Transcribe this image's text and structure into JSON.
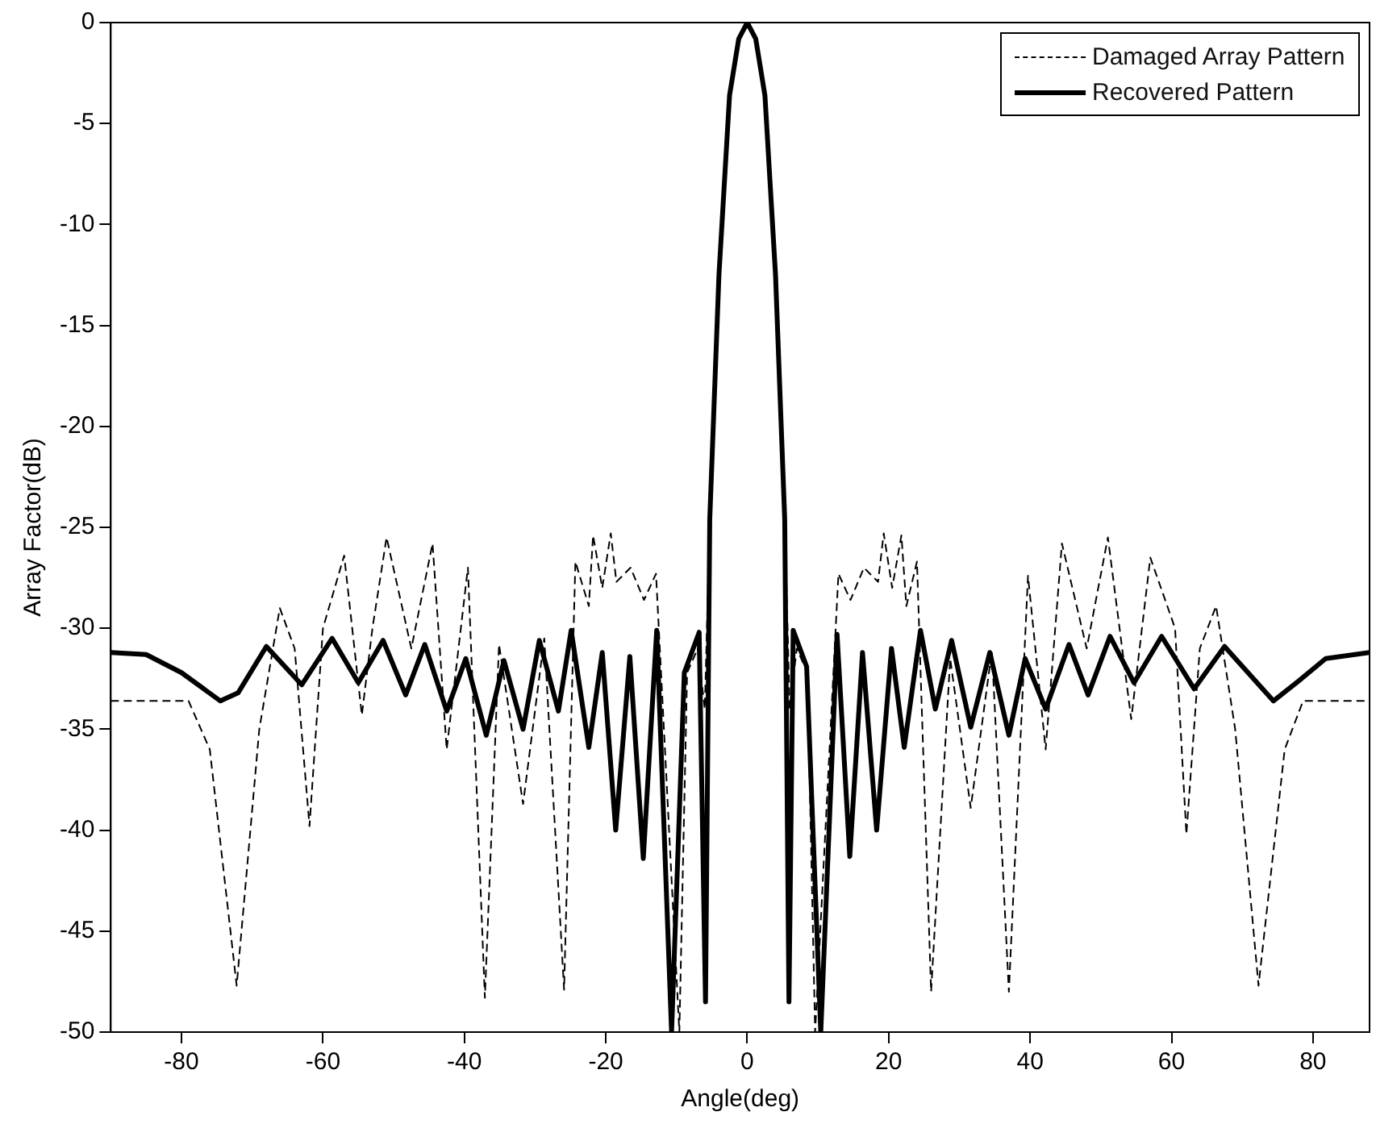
{
  "chart_data": {
    "type": "line",
    "xlabel": "Angle(deg)",
    "ylabel": "Array Factor(dB)",
    "xlim": [
      -90,
      88
    ],
    "ylim": [
      -50,
      0
    ],
    "xticks": [
      -80,
      -60,
      -40,
      -20,
      0,
      20,
      40,
      60,
      80
    ],
    "yticks": [
      0,
      -5,
      -10,
      -15,
      -20,
      -25,
      -30,
      -35,
      -40,
      -45,
      -50
    ],
    "legend": "top right",
    "marker": "none",
    "series": [
      {
        "name": "Damaged Array Pattern",
        "color": "#000000",
        "line_style": "dashed",
        "x": [
          -90,
          -79,
          -76,
          -72.2,
          -69,
          -66.1,
          -64,
          -61.9,
          -60,
          -57,
          -54.5,
          -53,
          -51,
          -47.5,
          -44.5,
          -42.5,
          -39.5,
          -37.1,
          -35.1,
          -31.7,
          -28.7,
          -25.9,
          -24.3,
          -22.4,
          -21.8,
          -20.5,
          -19.3,
          -18.5,
          -16.5,
          -14.6,
          -12.9,
          -9.6,
          -8.5,
          -7,
          -6,
          -5.3,
          -4,
          -2.5,
          -1.2,
          0,
          1.2,
          2.5,
          4,
          5.3,
          6,
          7,
          8.5,
          9.6,
          12.9,
          14.6,
          16.5,
          18.5,
          19.3,
          20.5,
          21.8,
          22.5,
          24,
          26,
          28.7,
          31.6,
          34.6,
          37,
          39.7,
          42.2,
          44.5,
          48,
          51,
          54.3,
          57,
          60.5,
          62.1,
          64,
          66.3,
          69,
          72.3,
          76,
          78.6,
          88
        ],
        "values": [
          -33.6,
          -33.6,
          -36,
          -47.7,
          -35,
          -29,
          -31,
          -39.8,
          -30,
          -26.4,
          -34.3,
          -30,
          -25.5,
          -31,
          -25.8,
          -36,
          -27,
          -48.3,
          -30.8,
          -38.7,
          -30.5,
          -47.9,
          -26.7,
          -28.9,
          -25.4,
          -28,
          -25.3,
          -27.7,
          -27,
          -28.6,
          -27.3,
          -50,
          -32.2,
          -31,
          -34,
          -24.6,
          -12.5,
          -3.6,
          -0.8,
          0,
          -0.8,
          -3.6,
          -12.5,
          -24.6,
          -34,
          -31,
          -32.2,
          -50,
          -27.3,
          -28.6,
          -27,
          -27.7,
          -25.3,
          -28,
          -25.4,
          -28.9,
          -26.7,
          -48,
          -31.5,
          -38.9,
          -31.1,
          -48,
          -27.4,
          -36,
          -25.8,
          -31,
          -25.5,
          -34.5,
          -26.5,
          -30,
          -40.2,
          -31,
          -28.9,
          -35,
          -47.7,
          -36,
          -33.6,
          -33.6
        ]
      },
      {
        "name": "Recovered Pattern",
        "color": "#000000",
        "line_style": "solid",
        "x": [
          -90,
          -85,
          -80,
          -74.5,
          -72,
          -68,
          -63,
          -58.7,
          -55,
          -51.5,
          -48.3,
          -45.6,
          -42.5,
          -39.8,
          -36.9,
          -34.4,
          -31.7,
          -29.4,
          -26.7,
          -24.9,
          -22.4,
          -20.5,
          -18.6,
          -16.6,
          -14.7,
          -12.8,
          -10.7,
          -8.9,
          -6.8,
          -5.9,
          -5.3,
          -4,
          -2.5,
          -1.2,
          0,
          1.2,
          2.5,
          4,
          5.3,
          5.9,
          6.5,
          8.4,
          10.4,
          12.7,
          14.5,
          16.3,
          18.3,
          20.4,
          22.2,
          24.5,
          26.6,
          28.9,
          31.6,
          34.3,
          37,
          39.3,
          42.2,
          45.5,
          48.2,
          51.3,
          54.7,
          58.6,
          63.2,
          67.5,
          74.4,
          78,
          81.8,
          88
        ],
        "values": [
          -31.2,
          -31.3,
          -32.2,
          -33.6,
          -33.2,
          -30.9,
          -32.8,
          -30.5,
          -32.7,
          -30.6,
          -33.3,
          -30.8,
          -34.1,
          -31.5,
          -35.3,
          -31.6,
          -35,
          -30.6,
          -34.1,
          -30.1,
          -35.9,
          -31.2,
          -40,
          -31.4,
          -41.4,
          -30.1,
          -50,
          -32.2,
          -30.2,
          -48.5,
          -24.6,
          -12.5,
          -3.6,
          -0.8,
          0,
          -0.8,
          -3.6,
          -12.5,
          -24.6,
          -48.5,
          -30.1,
          -31.9,
          -50,
          -30.3,
          -41.3,
          -31.2,
          -40,
          -31,
          -35.9,
          -30.1,
          -34,
          -30.6,
          -34.9,
          -31.2,
          -35.3,
          -31.5,
          -34,
          -30.8,
          -33.3,
          -30.4,
          -32.7,
          -30.4,
          -33,
          -30.9,
          -33.6,
          -32.6,
          -31.5,
          -31.2
        ]
      }
    ]
  }
}
